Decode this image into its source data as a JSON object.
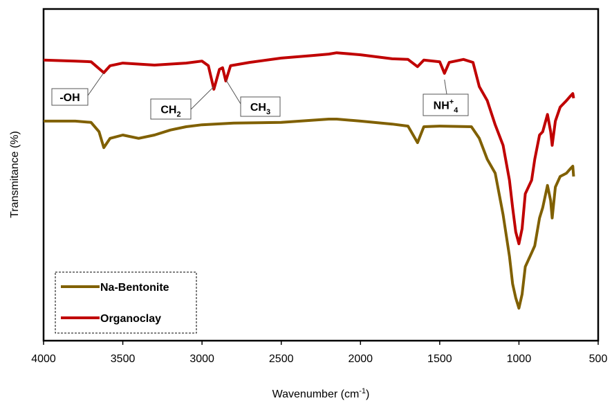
{
  "chart_data": {
    "type": "line",
    "ylabel": "Transmitance (%)",
    "xlabel": {
      "text": "Wavenumber (cm",
      "sup": "-1",
      "after": ")"
    },
    "xlim": [
      4000,
      500
    ],
    "xticks": [
      4000,
      3500,
      3000,
      2500,
      2000,
      1500,
      1000,
      500
    ],
    "ylim": [
      0,
      100
    ],
    "legend": "lower left",
    "series": [
      {
        "name": "Na-Bentonite",
        "color": "#806000",
        "x": [
          4000,
          3800,
          3700,
          3650,
          3620,
          3580,
          3500,
          3400,
          3300,
          3200,
          3100,
          3000,
          2800,
          2500,
          2200,
          2150,
          2000,
          1800,
          1700,
          1640,
          1600,
          1500,
          1300,
          1250,
          1200,
          1150,
          1100,
          1060,
          1040,
          1020,
          1000,
          980,
          960,
          920,
          900,
          870,
          850,
          820,
          800,
          790,
          770,
          740,
          700,
          680,
          660,
          655
        ],
        "values": [
          66.2,
          66.2,
          65.8,
          63.0,
          58.2,
          61.0,
          62.0,
          61.0,
          62.0,
          63.5,
          64.5,
          65.1,
          65.6,
          65.8,
          66.8,
          66.8,
          66.2,
          65.3,
          64.7,
          59.7,
          64.5,
          64.7,
          64.5,
          61.0,
          54.7,
          50.5,
          38.0,
          25.5,
          17.1,
          12.9,
          9.8,
          14.0,
          22.3,
          26.5,
          28.6,
          37.0,
          40.1,
          46.8,
          42.2,
          37.0,
          46.3,
          49.5,
          50.5,
          51.6,
          52.6,
          49.5
        ]
      },
      {
        "name": "Organoclay",
        "color": "#c00000",
        "x": [
          4000,
          3800,
          3700,
          3620,
          3580,
          3500,
          3300,
          3100,
          3000,
          2960,
          2925,
          2890,
          2870,
          2850,
          2820,
          2700,
          2500,
          2300,
          2200,
          2150,
          2000,
          1800,
          1700,
          1640,
          1600,
          1500,
          1470,
          1440,
          1350,
          1290,
          1250,
          1200,
          1150,
          1100,
          1060,
          1040,
          1020,
          1000,
          980,
          960,
          920,
          900,
          870,
          850,
          820,
          800,
          790,
          770,
          740,
          700,
          680,
          660,
          655
        ],
        "values": [
          84.6,
          84.3,
          84.1,
          80.8,
          82.9,
          83.7,
          83.1,
          83.7,
          84.3,
          82.9,
          75.8,
          81.8,
          82.3,
          78.3,
          82.9,
          83.9,
          85.2,
          86.0,
          86.4,
          86.8,
          86.2,
          85.0,
          84.8,
          82.6,
          84.6,
          84.1,
          80.6,
          83.9,
          84.8,
          83.9,
          76.6,
          72.4,
          65.1,
          58.9,
          48.4,
          40.1,
          32.8,
          29.2,
          33.8,
          44.3,
          48.4,
          54.7,
          62.0,
          63.0,
          68.2,
          63.0,
          58.9,
          66.2,
          70.4,
          72.4,
          73.5,
          74.5,
          73.1
        ]
      }
    ],
    "annotations": [
      {
        "text": "-OH",
        "x": 3620
      },
      {
        "text": "CH",
        "sub": "2",
        "x": 2925
      },
      {
        "text": "CH",
        "sub": "3",
        "x": 2850
      },
      {
        "text": "NH",
        "sup": "+",
        "sub": "4",
        "x": 1470
      }
    ]
  }
}
